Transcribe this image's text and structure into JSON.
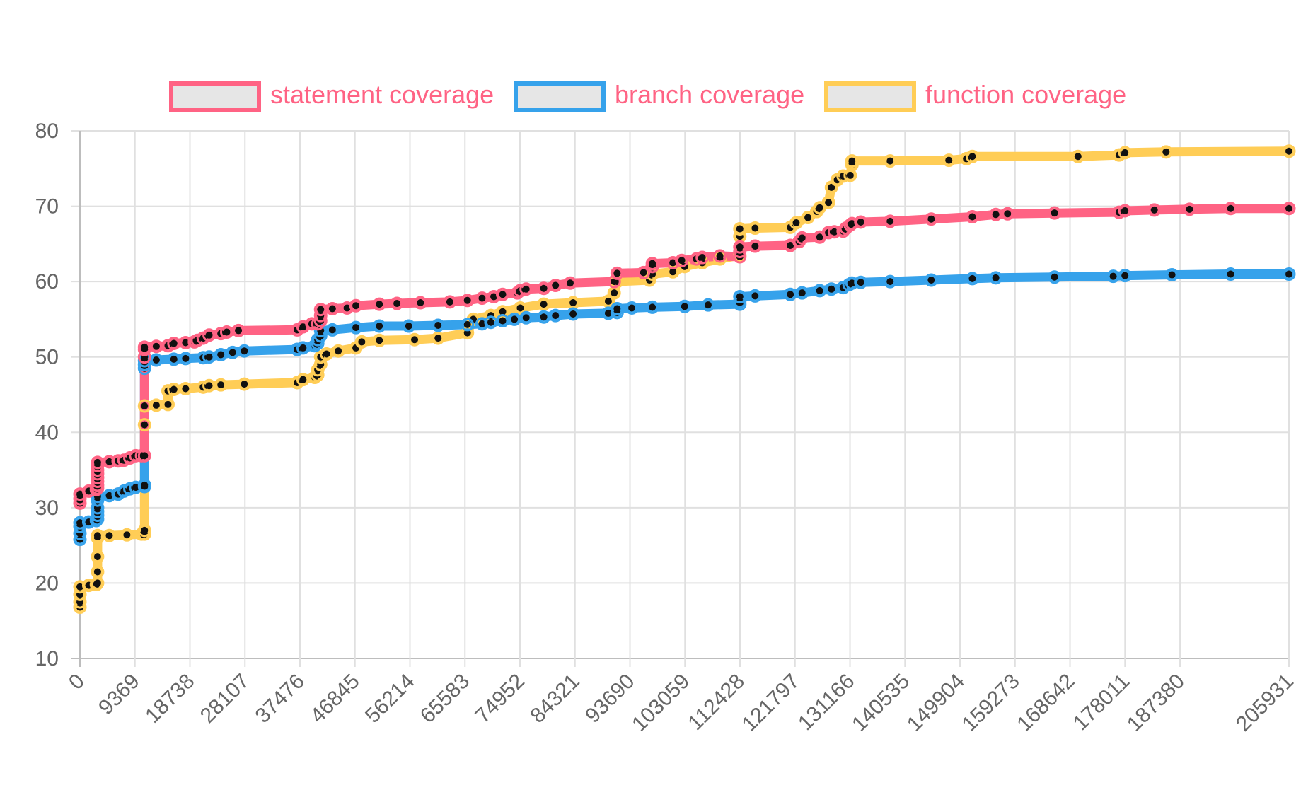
{
  "chart_data": {
    "type": "line",
    "title": "",
    "xlabel": "",
    "ylabel": "",
    "x_ticks": [
      "0",
      "9369",
      "18738",
      "28107",
      "37476",
      "46845",
      "56214",
      "65583",
      "74952",
      "84321",
      "93690",
      "103059",
      "112428",
      "121797",
      "131166",
      "140535",
      "149904",
      "159273",
      "168642",
      "178011",
      "187380",
      "205931"
    ],
    "x_range": [
      0,
      205931
    ],
    "y_ticks": [
      "10",
      "20",
      "30",
      "40",
      "50",
      "60",
      "70",
      "80"
    ],
    "ylim": [
      10,
      80
    ],
    "grid": true,
    "legend_position": "top",
    "series": [
      {
        "name": "statement coverage",
        "color": "#ff6384",
        "points": [
          [
            0,
            30.6
          ],
          [
            0,
            31.2
          ],
          [
            0,
            31.8
          ],
          [
            1500,
            32.2
          ],
          [
            2800,
            32.4
          ],
          [
            3000,
            32.6
          ],
          [
            3000,
            33.0
          ],
          [
            3000,
            33.5
          ],
          [
            3000,
            34.0
          ],
          [
            3000,
            34.5
          ],
          [
            3000,
            35.0
          ],
          [
            3000,
            35.6
          ],
          [
            3000,
            36.0
          ],
          [
            5000,
            36.1
          ],
          [
            6500,
            36.2
          ],
          [
            7500,
            36.3
          ],
          [
            8500,
            36.6
          ],
          [
            9500,
            36.9
          ],
          [
            10500,
            36.9
          ],
          [
            11000,
            36.9
          ],
          [
            11000,
            50.0
          ],
          [
            11000,
            51.0
          ],
          [
            11000,
            51.3
          ],
          [
            13000,
            51.4
          ],
          [
            15000,
            51.5
          ],
          [
            16000,
            51.8
          ],
          [
            18000,
            51.9
          ],
          [
            19500,
            52.0
          ],
          [
            20000,
            52.2
          ],
          [
            21000,
            52.5
          ],
          [
            22000,
            52.9
          ],
          [
            24000,
            53.1
          ],
          [
            25000,
            53.3
          ],
          [
            27000,
            53.5
          ],
          [
            37000,
            53.6
          ],
          [
            38000,
            54.0
          ],
          [
            39500,
            54.4
          ],
          [
            40500,
            54.4
          ],
          [
            41000,
            54.8
          ],
          [
            41000,
            55.5
          ],
          [
            41000,
            56.3
          ],
          [
            43000,
            56.4
          ],
          [
            45500,
            56.5
          ],
          [
            47000,
            56.8
          ],
          [
            51000,
            57.0
          ],
          [
            54000,
            57.1
          ],
          [
            58000,
            57.2
          ],
          [
            63000,
            57.3
          ],
          [
            66000,
            57.5
          ],
          [
            68500,
            57.8
          ],
          [
            70500,
            58.0
          ],
          [
            72000,
            58.3
          ],
          [
            74500,
            58.5
          ],
          [
            75000,
            58.8
          ],
          [
            76000,
            59.0
          ],
          [
            79000,
            59.1
          ],
          [
            81000,
            59.5
          ],
          [
            83500,
            59.8
          ],
          [
            91000,
            60.0
          ],
          [
            91500,
            61.1
          ],
          [
            96000,
            61.2
          ],
          [
            97500,
            62.0
          ],
          [
            97500,
            62.4
          ],
          [
            101000,
            62.5
          ],
          [
            102500,
            62.8
          ],
          [
            105000,
            63.0
          ],
          [
            106000,
            63.2
          ],
          [
            109000,
            63.4
          ],
          [
            112400,
            63.3
          ],
          [
            112400,
            64.0
          ],
          [
            112400,
            64.6
          ],
          [
            115000,
            64.7
          ],
          [
            121000,
            64.8
          ],
          [
            122500,
            65.3
          ],
          [
            123000,
            65.8
          ],
          [
            126000,
            65.9
          ],
          [
            127500,
            66.5
          ],
          [
            128500,
            66.6
          ],
          [
            130000,
            66.7
          ],
          [
            130500,
            67.1
          ],
          [
            131200,
            67.5
          ],
          [
            131500,
            67.7
          ],
          [
            133000,
            67.9
          ],
          [
            138000,
            68.0
          ],
          [
            145000,
            68.3
          ],
          [
            152000,
            68.6
          ],
          [
            156000,
            68.9
          ],
          [
            158000,
            69.0
          ],
          [
            166000,
            69.1
          ],
          [
            177000,
            69.2
          ],
          [
            178000,
            69.4
          ],
          [
            183000,
            69.5
          ],
          [
            189000,
            69.6
          ],
          [
            196000,
            69.7
          ],
          [
            205931,
            69.7
          ]
        ]
      },
      {
        "name": "branch coverage",
        "color": "#36a2eb",
        "points": [
          [
            0,
            25.8
          ],
          [
            0,
            26.6
          ],
          [
            0,
            27.5
          ],
          [
            0,
            28.0
          ],
          [
            1500,
            28.1
          ],
          [
            2800,
            28.3
          ],
          [
            3000,
            28.5
          ],
          [
            3000,
            29.0
          ],
          [
            3000,
            29.5
          ],
          [
            3000,
            30.0
          ],
          [
            3000,
            31.0
          ],
          [
            3000,
            31.5
          ],
          [
            5000,
            31.6
          ],
          [
            6500,
            31.8
          ],
          [
            7500,
            32.2
          ],
          [
            8500,
            32.5
          ],
          [
            9500,
            32.7
          ],
          [
            11000,
            32.8
          ],
          [
            11000,
            33.0
          ],
          [
            11000,
            48.5
          ],
          [
            11000,
            49.0
          ],
          [
            11000,
            49.5
          ],
          [
            13000,
            49.6
          ],
          [
            16000,
            49.7
          ],
          [
            18000,
            49.8
          ],
          [
            21000,
            49.9
          ],
          [
            22000,
            50.0
          ],
          [
            24000,
            50.3
          ],
          [
            26000,
            50.6
          ],
          [
            28000,
            50.8
          ],
          [
            37000,
            51.0
          ],
          [
            38000,
            51.2
          ],
          [
            40000,
            51.5
          ],
          [
            40500,
            51.8
          ],
          [
            40500,
            52.3
          ],
          [
            41000,
            52.8
          ],
          [
            41000,
            53.5
          ],
          [
            43000,
            53.6
          ],
          [
            47000,
            53.9
          ],
          [
            51000,
            54.1
          ],
          [
            56000,
            54.1
          ],
          [
            61000,
            54.2
          ],
          [
            66000,
            54.3
          ],
          [
            68500,
            54.4
          ],
          [
            70000,
            54.6
          ],
          [
            72000,
            54.8
          ],
          [
            74000,
            55.0
          ],
          [
            76000,
            55.2
          ],
          [
            79000,
            55.3
          ],
          [
            81000,
            55.5
          ],
          [
            84000,
            55.7
          ],
          [
            90000,
            55.8
          ],
          [
            91500,
            55.9
          ],
          [
            91500,
            56.4
          ],
          [
            94000,
            56.5
          ],
          [
            97500,
            56.6
          ],
          [
            103000,
            56.7
          ],
          [
            107000,
            56.9
          ],
          [
            112400,
            57.0
          ],
          [
            112400,
            57.4
          ],
          [
            112400,
            58.0
          ],
          [
            115000,
            58.1
          ],
          [
            121000,
            58.3
          ],
          [
            123000,
            58.5
          ],
          [
            126000,
            58.8
          ],
          [
            128000,
            59.0
          ],
          [
            130000,
            59.2
          ],
          [
            131000,
            59.6
          ],
          [
            131500,
            59.8
          ],
          [
            133000,
            59.9
          ],
          [
            138000,
            60.0
          ],
          [
            145000,
            60.2
          ],
          [
            152000,
            60.4
          ],
          [
            156000,
            60.5
          ],
          [
            166000,
            60.6
          ],
          [
            176000,
            60.7
          ],
          [
            178000,
            60.8
          ],
          [
            186000,
            60.9
          ],
          [
            196000,
            61.0
          ],
          [
            205931,
            61.0
          ]
        ]
      },
      {
        "name": "function coverage",
        "color": "#ffcd56",
        "points": [
          [
            0,
            16.8
          ],
          [
            0,
            17.5
          ],
          [
            0,
            18.5
          ],
          [
            0,
            19.5
          ],
          [
            1500,
            19.7
          ],
          [
            2800,
            19.8
          ],
          [
            3000,
            20.0
          ],
          [
            3000,
            21.5
          ],
          [
            3000,
            23.5
          ],
          [
            3000,
            26.0
          ],
          [
            3000,
            26.3
          ],
          [
            5000,
            26.3
          ],
          [
            8000,
            26.4
          ],
          [
            10500,
            26.5
          ],
          [
            11000,
            26.5
          ],
          [
            11000,
            27.0
          ],
          [
            11000,
            41.0
          ],
          [
            11000,
            43.5
          ],
          [
            13000,
            43.6
          ],
          [
            15000,
            43.7
          ],
          [
            15000,
            45.5
          ],
          [
            16000,
            45.7
          ],
          [
            18000,
            45.8
          ],
          [
            21000,
            46.0
          ],
          [
            22000,
            46.2
          ],
          [
            24000,
            46.3
          ],
          [
            28000,
            46.4
          ],
          [
            37000,
            46.6
          ],
          [
            38000,
            47.0
          ],
          [
            40000,
            47.3
          ],
          [
            40500,
            47.6
          ],
          [
            40500,
            48.3
          ],
          [
            41000,
            49.0
          ],
          [
            41000,
            50.0
          ],
          [
            42000,
            50.4
          ],
          [
            44000,
            50.8
          ],
          [
            47000,
            51.2
          ],
          [
            48000,
            52.0
          ],
          [
            51000,
            52.2
          ],
          [
            57000,
            52.3
          ],
          [
            61000,
            52.5
          ],
          [
            66000,
            53.2
          ],
          [
            67000,
            55.0
          ],
          [
            70000,
            55.5
          ],
          [
            72000,
            56.0
          ],
          [
            75000,
            56.5
          ],
          [
            79000,
            57.0
          ],
          [
            84000,
            57.2
          ],
          [
            90000,
            57.4
          ],
          [
            91000,
            58.5
          ],
          [
            91500,
            60.0
          ],
          [
            97000,
            60.2
          ],
          [
            97500,
            61.0
          ],
          [
            101000,
            61.3
          ],
          [
            103000,
            62.0
          ],
          [
            106000,
            62.5
          ],
          [
            109000,
            63.0
          ],
          [
            112400,
            63.5
          ],
          [
            112400,
            66.0
          ],
          [
            112400,
            67.0
          ],
          [
            115000,
            67.1
          ],
          [
            121000,
            67.2
          ],
          [
            122000,
            67.8
          ],
          [
            124000,
            68.5
          ],
          [
            125500,
            69.3
          ],
          [
            126000,
            69.8
          ],
          [
            127500,
            70.5
          ],
          [
            128000,
            72.5
          ],
          [
            129000,
            73.5
          ],
          [
            130000,
            74.0
          ],
          [
            131200,
            74.1
          ],
          [
            131500,
            75.5
          ],
          [
            131500,
            76.0
          ],
          [
            138000,
            76.0
          ],
          [
            148000,
            76.1
          ],
          [
            151000,
            76.3
          ],
          [
            152000,
            76.6
          ],
          [
            170000,
            76.6
          ],
          [
            177000,
            76.8
          ],
          [
            178000,
            77.1
          ],
          [
            185000,
            77.2
          ],
          [
            205931,
            77.3
          ]
        ]
      }
    ]
  }
}
